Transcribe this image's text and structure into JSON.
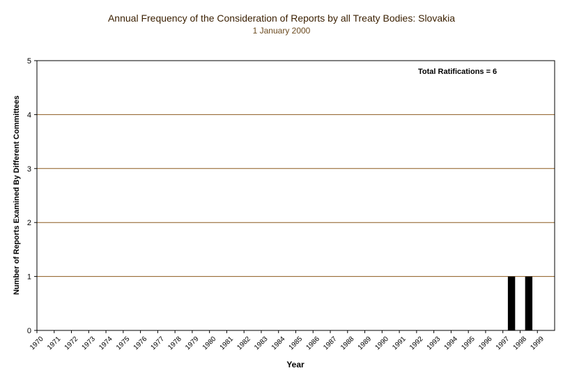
{
  "colors": {
    "gridline": "#8b5a1e",
    "bar": "#000000",
    "text": "#000000",
    "title": "#3a1f00",
    "subtitle": "#6b4a1f"
  },
  "chart_data": {
    "type": "bar",
    "title": "Annual Frequency of the Consideration of Reports by all Treaty Bodies: Slovakia",
    "subtitle": "1 January 2000",
    "xlabel": "Year",
    "ylabel": "Number of Reports Examined By Different Committees",
    "annotation": "Total Ratifications = 6",
    "ylim": [
      0,
      5
    ],
    "yticks": [
      0,
      1,
      2,
      3,
      4,
      5
    ],
    "grid": true,
    "categories": [
      "1970",
      "1971",
      "1972",
      "1973",
      "1974",
      "1975",
      "1976",
      "1977",
      "1978",
      "1979",
      "1980",
      "1981",
      "1982",
      "1983",
      "1984",
      "1985",
      "1986",
      "1987",
      "1988",
      "1989",
      "1990",
      "1991",
      "1992",
      "1993",
      "1994",
      "1995",
      "1996",
      "1997",
      "1998",
      "1999"
    ],
    "values": [
      0,
      0,
      0,
      0,
      0,
      0,
      0,
      0,
      0,
      0,
      0,
      0,
      0,
      0,
      0,
      0,
      0,
      0,
      0,
      0,
      0,
      0,
      0,
      0,
      0,
      0,
      0,
      1,
      1,
      0
    ]
  }
}
